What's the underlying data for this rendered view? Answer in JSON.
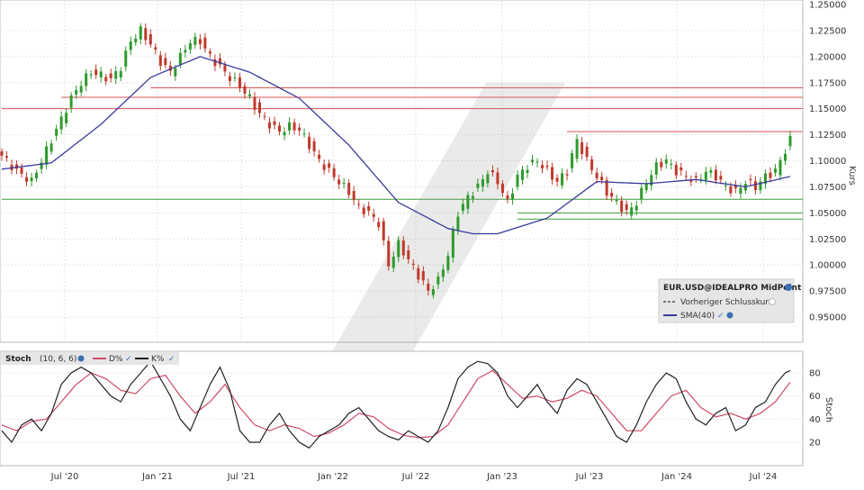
{
  "chart_data": [
    {
      "type": "candlestick",
      "panel": "price",
      "instrument": "EUR.USD@IDEALPRO MidPoint",
      "ylabel": "Kurs",
      "ylim": [
        0.925,
        1.25
      ],
      "yticks": [
        "1.25000",
        "1.22500",
        "1.20000",
        "1.17500",
        "1.15000",
        "1.12500",
        "1.10000",
        "1.07500",
        "1.05000",
        "1.02500",
        "1.00000",
        "0.97500",
        "0.95000"
      ],
      "xticks": [
        "Jul '20",
        "Jan '21",
        "Jul '21",
        "Jan '22",
        "Jul '22",
        "Jan '23",
        "Jul '23",
        "Jan '24",
        "Jul '24"
      ],
      "grid": true,
      "legend": {
        "title": "EUR.USD@IDEALPRO MidPoint",
        "items": [
          {
            "label": "Vorheriger Schlusskurs",
            "style": "dashed",
            "color": "#333333"
          },
          {
            "label": "SMA(40)",
            "style": "solid",
            "color": "#3a3a9c"
          }
        ],
        "placement": "bottom-right"
      },
      "colors": {
        "up": "#2e9a2e",
        "down": "#c0392b",
        "sma": "#3a3a9c"
      },
      "approx_close_path": [
        [
          0,
          1.105
        ],
        [
          3,
          1.09
        ],
        [
          6,
          1.08
        ],
        [
          8,
          1.1
        ],
        [
          10,
          1.12
        ],
        [
          12,
          1.14
        ],
        [
          14,
          1.16
        ],
        [
          16,
          1.175
        ],
        [
          18,
          1.185
        ],
        [
          20,
          1.182
        ],
        [
          22,
          1.178
        ],
        [
          24,
          1.19
        ],
        [
          26,
          1.215
        ],
        [
          28,
          1.225
        ],
        [
          30,
          1.212
        ],
        [
          32,
          1.195
        ],
        [
          34,
          1.185
        ],
        [
          36,
          1.2
        ],
        [
          38,
          1.215
        ],
        [
          40,
          1.215
        ],
        [
          42,
          1.2
        ],
        [
          44,
          1.19
        ],
        [
          46,
          1.18
        ],
        [
          48,
          1.172
        ],
        [
          50,
          1.16
        ],
        [
          52,
          1.145
        ],
        [
          54,
          1.135
        ],
        [
          56,
          1.128
        ],
        [
          58,
          1.133
        ],
        [
          60,
          1.13
        ],
        [
          62,
          1.115
        ],
        [
          64,
          1.1
        ],
        [
          66,
          1.09
        ],
        [
          68,
          1.08
        ],
        [
          70,
          1.07
        ],
        [
          72,
          1.055
        ],
        [
          74,
          1.05
        ],
        [
          76,
          1.04
        ],
        [
          78,
          1.0
        ],
        [
          80,
          1.02
        ],
        [
          82,
          1.005
        ],
        [
          84,
          0.99
        ],
        [
          86,
          0.975
        ],
        [
          88,
          0.985
        ],
        [
          90,
          1.01
        ],
        [
          92,
          1.05
        ],
        [
          94,
          1.065
        ],
        [
          96,
          1.075
        ],
        [
          98,
          1.09
        ],
        [
          100,
          1.08
        ],
        [
          102,
          1.06
        ],
        [
          104,
          1.085
        ],
        [
          106,
          1.095
        ],
        [
          108,
          1.1
        ],
        [
          110,
          1.09
        ],
        [
          112,
          1.08
        ],
        [
          114,
          1.09
        ],
        [
          116,
          1.12
        ],
        [
          118,
          1.1
        ],
        [
          120,
          1.085
        ],
        [
          122,
          1.07
        ],
        [
          124,
          1.06
        ],
        [
          126,
          1.05
        ],
        [
          128,
          1.06
        ],
        [
          130,
          1.08
        ],
        [
          132,
          1.095
        ],
        [
          134,
          1.1
        ],
        [
          136,
          1.09
        ],
        [
          138,
          1.085
        ],
        [
          140,
          1.08
        ],
        [
          142,
          1.09
        ],
        [
          144,
          1.085
        ],
        [
          146,
          1.075
        ],
        [
          148,
          1.07
        ],
        [
          150,
          1.08
        ],
        [
          152,
          1.075
        ],
        [
          154,
          1.085
        ],
        [
          156,
          1.09
        ],
        [
          158,
          1.11
        ],
        [
          159,
          1.12
        ]
      ],
      "sma40_path": [
        [
          0,
          1.092
        ],
        [
          10,
          1.098
        ],
        [
          20,
          1.135
        ],
        [
          30,
          1.18
        ],
        [
          40,
          1.2
        ],
        [
          50,
          1.185
        ],
        [
          60,
          1.16
        ],
        [
          70,
          1.115
        ],
        [
          80,
          1.06
        ],
        [
          90,
          1.035
        ],
        [
          95,
          1.03
        ],
        [
          100,
          1.03
        ],
        [
          110,
          1.045
        ],
        [
          120,
          1.08
        ],
        [
          130,
          1.078
        ],
        [
          140,
          1.082
        ],
        [
          150,
          1.075
        ],
        [
          159,
          1.085
        ]
      ],
      "horizontal_lines": [
        {
          "value": 1.17,
          "x_from": 30,
          "color": "#d9534f"
        },
        {
          "value": 1.161,
          "x_from": 12,
          "color": "#d9534f"
        },
        {
          "value": 1.15,
          "x_from": 0,
          "color": "#d9534f"
        },
        {
          "value": 1.128,
          "x_from": 114,
          "color": "#d9534f"
        },
        {
          "value": 1.063,
          "x_from": 0,
          "color": "#3c9a3c"
        },
        {
          "value": 1.05,
          "x_from": 104,
          "color": "#3c9a3c"
        },
        {
          "value": 1.044,
          "x_from": 104,
          "color": "#3c9a3c"
        }
      ]
    },
    {
      "type": "line",
      "panel": "oscillator",
      "title": "Stoch",
      "params": "(10, 6, 6)",
      "ylabel": "Stoch",
      "ylim": [
        0,
        100
      ],
      "yticks": [
        "80",
        "60",
        "40",
        "20"
      ],
      "series": [
        {
          "name": "D%",
          "color": "#d04a66"
        },
        {
          "name": "K%",
          "color": "#222222"
        }
      ],
      "k_path": [
        [
          0,
          30
        ],
        [
          2,
          20
        ],
        [
          4,
          35
        ],
        [
          6,
          40
        ],
        [
          8,
          30
        ],
        [
          10,
          45
        ],
        [
          12,
          70
        ],
        [
          14,
          80
        ],
        [
          16,
          85
        ],
        [
          18,
          80
        ],
        [
          20,
          70
        ],
        [
          22,
          60
        ],
        [
          24,
          55
        ],
        [
          26,
          70
        ],
        [
          28,
          80
        ],
        [
          30,
          90
        ],
        [
          32,
          75
        ],
        [
          34,
          60
        ],
        [
          36,
          40
        ],
        [
          38,
          30
        ],
        [
          40,
          50
        ],
        [
          42,
          70
        ],
        [
          44,
          85
        ],
        [
          46,
          65
        ],
        [
          48,
          30
        ],
        [
          50,
          20
        ],
        [
          52,
          20
        ],
        [
          54,
          35
        ],
        [
          56,
          45
        ],
        [
          58,
          30
        ],
        [
          60,
          20
        ],
        [
          62,
          15
        ],
        [
          64,
          25
        ],
        [
          66,
          30
        ],
        [
          68,
          35
        ],
        [
          70,
          45
        ],
        [
          72,
          50
        ],
        [
          74,
          40
        ],
        [
          76,
          30
        ],
        [
          78,
          25
        ],
        [
          80,
          22
        ],
        [
          82,
          30
        ],
        [
          84,
          25
        ],
        [
          86,
          20
        ],
        [
          88,
          30
        ],
        [
          90,
          50
        ],
        [
          92,
          75
        ],
        [
          94,
          85
        ],
        [
          96,
          90
        ],
        [
          98,
          88
        ],
        [
          100,
          80
        ],
        [
          102,
          60
        ],
        [
          104,
          50
        ],
        [
          106,
          60
        ],
        [
          108,
          70
        ],
        [
          110,
          55
        ],
        [
          112,
          45
        ],
        [
          114,
          65
        ],
        [
          116,
          75
        ],
        [
          118,
          70
        ],
        [
          120,
          55
        ],
        [
          122,
          40
        ],
        [
          124,
          25
        ],
        [
          126,
          20
        ],
        [
          128,
          35
        ],
        [
          130,
          55
        ],
        [
          132,
          70
        ],
        [
          134,
          80
        ],
        [
          136,
          75
        ],
        [
          138,
          55
        ],
        [
          140,
          40
        ],
        [
          142,
          35
        ],
        [
          144,
          45
        ],
        [
          146,
          50
        ],
        [
          148,
          30
        ],
        [
          150,
          35
        ],
        [
          152,
          50
        ],
        [
          154,
          55
        ],
        [
          156,
          70
        ],
        [
          158,
          80
        ],
        [
          159,
          82
        ]
      ],
      "d_path": [
        [
          0,
          35
        ],
        [
          3,
          30
        ],
        [
          6,
          38
        ],
        [
          9,
          40
        ],
        [
          12,
          55
        ],
        [
          15,
          70
        ],
        [
          18,
          80
        ],
        [
          21,
          75
        ],
        [
          24,
          65
        ],
        [
          27,
          62
        ],
        [
          30,
          75
        ],
        [
          33,
          78
        ],
        [
          36,
          60
        ],
        [
          39,
          45
        ],
        [
          42,
          55
        ],
        [
          45,
          70
        ],
        [
          48,
          50
        ],
        [
          51,
          35
        ],
        [
          54,
          30
        ],
        [
          57,
          35
        ],
        [
          60,
          32
        ],
        [
          63,
          25
        ],
        [
          66,
          28
        ],
        [
          69,
          35
        ],
        [
          72,
          45
        ],
        [
          75,
          42
        ],
        [
          78,
          32
        ],
        [
          81,
          26
        ],
        [
          84,
          24
        ],
        [
          87,
          25
        ],
        [
          90,
          35
        ],
        [
          93,
          55
        ],
        [
          96,
          75
        ],
        [
          99,
          82
        ],
        [
          102,
          70
        ],
        [
          105,
          58
        ],
        [
          108,
          60
        ],
        [
          111,
          55
        ],
        [
          114,
          58
        ],
        [
          117,
          65
        ],
        [
          120,
          60
        ],
        [
          123,
          45
        ],
        [
          126,
          30
        ],
        [
          129,
          30
        ],
        [
          132,
          45
        ],
        [
          135,
          60
        ],
        [
          138,
          65
        ],
        [
          141,
          50
        ],
        [
          144,
          42
        ],
        [
          147,
          45
        ],
        [
          150,
          40
        ],
        [
          153,
          45
        ],
        [
          156,
          55
        ],
        [
          159,
          72
        ]
      ]
    }
  ]
}
